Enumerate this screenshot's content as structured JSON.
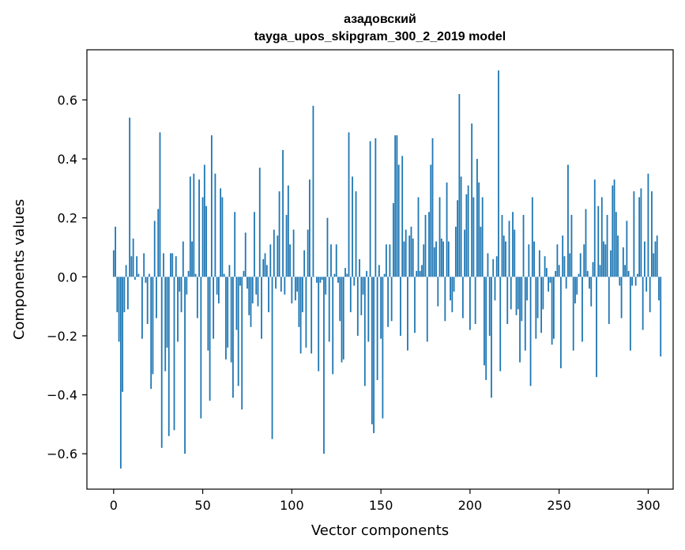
{
  "chart_data": {
    "type": "bar",
    "title": "азадовский",
    "subtitle": "tayga_upos_skipgram_300_2_2019 model",
    "xlabel": "Vector components",
    "ylabel": "Components values",
    "xlim": [
      -15,
      314
    ],
    "ylim": [
      -0.72,
      0.77
    ],
    "xticks": [
      0,
      50,
      100,
      150,
      200,
      250,
      300
    ],
    "yticks": [
      -0.6,
      -0.4,
      -0.2,
      0.0,
      0.2,
      0.4,
      0.6
    ],
    "ytick_labels": [
      "−0.6",
      "−0.4",
      "−0.2",
      "0.0",
      "0.2",
      "0.4",
      "0.6"
    ],
    "color": "#1f77b4",
    "grid": false,
    "values": [
      0.09,
      0.17,
      -0.12,
      -0.22,
      -0.65,
      -0.39,
      -0.12,
      0.04,
      -0.11,
      0.54,
      0.07,
      0.13,
      -0.01,
      0.07,
      0.01,
      0.0,
      -0.21,
      0.08,
      -0.02,
      -0.16,
      0.01,
      -0.38,
      -0.33,
      0.19,
      -0.14,
      0.23,
      0.49,
      -0.58,
      0.08,
      -0.32,
      -0.24,
      -0.54,
      0.08,
      0.08,
      -0.52,
      0.07,
      -0.22,
      -0.05,
      -0.12,
      0.12,
      -0.6,
      -0.06,
      0.02,
      0.34,
      0.12,
      0.35,
      0.01,
      -0.14,
      0.33,
      -0.48,
      0.27,
      0.38,
      0.24,
      -0.25,
      -0.42,
      0.48,
      -0.21,
      0.35,
      -0.06,
      -0.09,
      0.3,
      0.27,
      0.01,
      -0.28,
      -0.24,
      0.04,
      -0.29,
      -0.41,
      0.22,
      -0.18,
      -0.37,
      -0.03,
      -0.45,
      0.02,
      0.15,
      -0.04,
      -0.13,
      -0.17,
      -0.09,
      0.22,
      -0.06,
      -0.1,
      0.37,
      -0.21,
      0.06,
      0.08,
      0.04,
      -0.12,
      0.11,
      -0.55,
      0.16,
      -0.04,
      0.14,
      0.29,
      -0.05,
      0.43,
      -0.06,
      0.21,
      0.31,
      0.11,
      -0.09,
      0.16,
      -0.08,
      -0.05,
      -0.17,
      -0.26,
      -0.12,
      0.09,
      -0.24,
      0.16,
      0.33,
      -0.26,
      0.58,
      0.0,
      -0.02,
      -0.32,
      -0.02,
      -0.01,
      -0.6,
      -0.06,
      0.2,
      -0.22,
      0.11,
      -0.33,
      0.01,
      0.11,
      -0.02,
      -0.15,
      -0.29,
      -0.28,
      0.03,
      0.01,
      0.49,
      -0.12,
      0.34,
      -0.03,
      0.29,
      -0.2,
      0.06,
      -0.13,
      -0.06,
      -0.37,
      0.02,
      -0.22,
      0.46,
      -0.5,
      -0.53,
      0.47,
      -0.35,
      0.04,
      -0.21,
      -0.48,
      0.01,
      0.11,
      -0.17,
      0.11,
      -0.15,
      0.25,
      0.48,
      0.48,
      0.38,
      -0.2,
      0.41,
      0.12,
      0.16,
      -0.25,
      0.14,
      0.17,
      0.13,
      -0.19,
      0.02,
      0.27,
      0.02,
      0.04,
      0.11,
      0.21,
      -0.22,
      0.22,
      0.38,
      0.47,
      0.1,
      0.12,
      -0.1,
      0.27,
      0.13,
      0.12,
      -0.15,
      0.32,
      0.12,
      -0.08,
      -0.12,
      -0.05,
      0.17,
      0.26,
      0.62,
      0.34,
      -0.14,
      0.16,
      0.28,
      0.31,
      -0.18,
      0.52,
      0.27,
      -0.16,
      0.4,
      0.32,
      0.17,
      0.27,
      -0.3,
      -0.35,
      0.08,
      -0.2,
      -0.41,
      0.06,
      -0.08,
      0.07,
      0.7,
      -0.32,
      0.21,
      0.14,
      0.12,
      -0.16,
      0.19,
      -0.11,
      0.22,
      0.16,
      -0.13,
      -0.11,
      -0.29,
      -0.15,
      0.21,
      -0.25,
      -0.08,
      0.11,
      -0.37,
      0.27,
      0.12,
      -0.21,
      -0.14,
      0.09,
      -0.19,
      -0.11,
      0.07,
      0.03,
      -0.05,
      -0.02,
      -0.23,
      -0.21,
      0.02,
      0.11,
      0.04,
      -0.31,
      0.14,
      0.07,
      -0.04,
      0.38,
      0.08,
      0.21,
      -0.25,
      -0.09,
      -0.06,
      0.01,
      0.08,
      -0.22,
      0.11,
      0.23,
      0.02,
      -0.04,
      -0.1,
      0.05,
      0.33,
      -0.34,
      0.24,
      0.04,
      0.27,
      0.12,
      0.11,
      0.21,
      -0.16,
      0.09,
      0.31,
      0.33,
      0.22,
      0.14,
      -0.03,
      -0.14,
      0.1,
      0.04,
      0.19,
      0.02,
      -0.25,
      -0.03,
      0.29,
      -0.03,
      0.01,
      0.27,
      0.3,
      -0.18,
      0.12,
      -0.05,
      0.35,
      -0.12,
      0.29,
      0.08,
      0.12,
      0.14,
      -0.08,
      -0.27
    ]
  }
}
